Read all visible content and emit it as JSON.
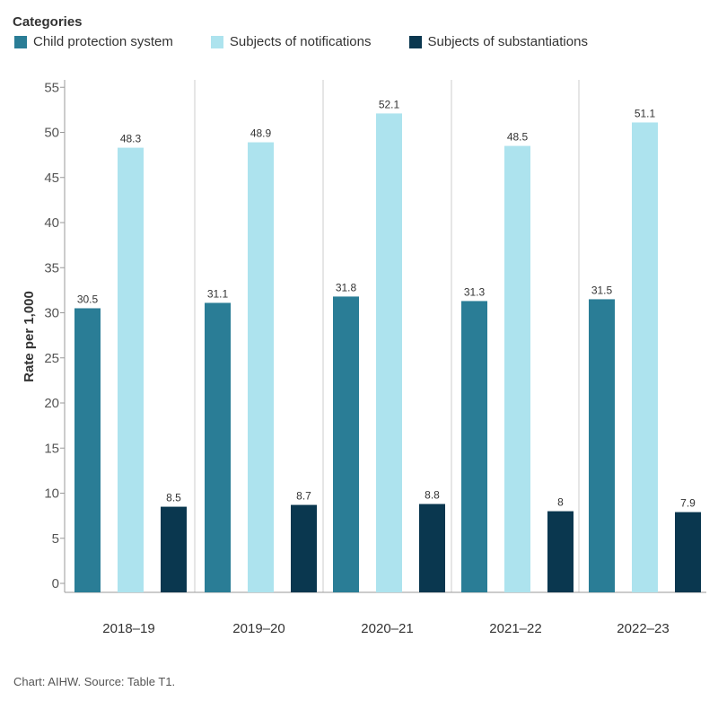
{
  "legend": {
    "title": "Categories",
    "items": [
      {
        "label": "Child protection system",
        "color": "#2a7d96"
      },
      {
        "label": "Subjects of notifications",
        "color": "#ade3ee"
      },
      {
        "label": "Subjects of substantiations",
        "color": "#0a374f"
      }
    ]
  },
  "source": "Chart: AIHW. Source: Table T1.",
  "chart_data": {
    "type": "bar",
    "title": "",
    "xlabel": "",
    "ylabel": "Rate per 1,000",
    "ylim": [
      0,
      55
    ],
    "yticks": [
      0,
      5,
      10,
      15,
      20,
      25,
      30,
      35,
      40,
      45,
      50,
      55
    ],
    "grid": false,
    "legend_position": "top-left",
    "categories": [
      "2018–19",
      "2019–20",
      "2020–21",
      "2021–22",
      "2022–23"
    ],
    "series": [
      {
        "name": "Child protection system",
        "color": "#2a7d96",
        "values": [
          30.5,
          31.1,
          31.8,
          31.3,
          31.5
        ]
      },
      {
        "name": "Subjects of notifications",
        "color": "#ade3ee",
        "values": [
          48.3,
          48.9,
          52.1,
          48.5,
          51.1
        ]
      },
      {
        "name": "Subjects of substantiations",
        "color": "#0a374f",
        "values": [
          8.5,
          8.7,
          8.8,
          8,
          7.9
        ]
      }
    ]
  }
}
